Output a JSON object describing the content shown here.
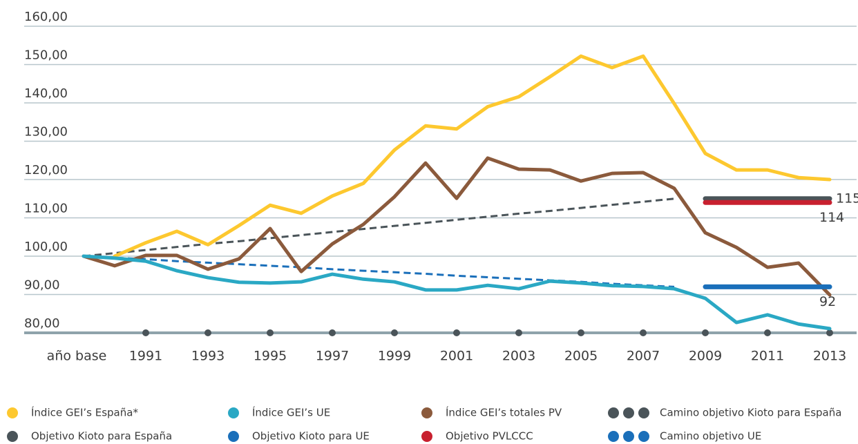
{
  "chart_data": {
    "type": "line",
    "categories": [
      "año base",
      null,
      "1991",
      null,
      "1993",
      null,
      "1995",
      null,
      "1997",
      null,
      "1999",
      null,
      "2001",
      null,
      "2003",
      null,
      "2005",
      null,
      "2007",
      null,
      "2009",
      null,
      "2011",
      null,
      "2013"
    ],
    "ylim": [
      80,
      160
    ],
    "yticks": [
      {
        "value": 80,
        "label": "80,00"
      },
      {
        "value": 90,
        "label": "90,00"
      },
      {
        "value": 100,
        "label": "100,00"
      },
      {
        "value": 110,
        "label": "110,00"
      },
      {
        "value": 120,
        "label": "120,00"
      },
      {
        "value": 130,
        "label": "130,00"
      },
      {
        "value": 140,
        "label": "140,00"
      },
      {
        "value": 150,
        "label": "150,00"
      },
      {
        "value": 160,
        "label": "160,00"
      }
    ],
    "grid": true,
    "series": [
      {
        "name": "Índice GEI’s España*",
        "color": "#fdc82f",
        "values": [
          null,
          100,
          103.5,
          106.5,
          103,
          108,
          113.3,
          111.2,
          115.7,
          119,
          127.7,
          134,
          133.2,
          139,
          141.6,
          146.8,
          152.2,
          149.2,
          152.2,
          139.8,
          126.8,
          122.5,
          122.5,
          120.5,
          120
        ]
      },
      {
        "name": "Índice GEI’s UE",
        "color": "#2aa8c4",
        "values": [
          100,
          99.5,
          98.7,
          96.2,
          94.4,
          93.2,
          93,
          93.3,
          95.3,
          94,
          93.3,
          91.2,
          91.2,
          92.4,
          91.5,
          93.5,
          93,
          92.3,
          92.1,
          91.5,
          89,
          82.7,
          84.7,
          82.3,
          81.1
        ]
      },
      {
        "name": "Índice GEI’s totales PV",
        "color": "#8b5a3c",
        "values": [
          100,
          97.5,
          100.2,
          100.2,
          96.6,
          99.3,
          107.2,
          96,
          103.2,
          108.3,
          115.5,
          124.3,
          115.1,
          125.6,
          122.7,
          122.5,
          119.6,
          121.6,
          121.8,
          117.7,
          106.1,
          102.3,
          97.1,
          98.2,
          89.9
        ]
      },
      {
        "name": "Camino objetivo Kioto para España",
        "color": "#4a5459",
        "dashed": true,
        "values": [
          100,
          100.8,
          101.6,
          102.4,
          103.2,
          103.9,
          104.7,
          105.5,
          106.3,
          107.1,
          107.9,
          108.7,
          109.5,
          110.3,
          111.1,
          111.8,
          112.6,
          113.4,
          114.2,
          115,
          null,
          null,
          null,
          null,
          null
        ]
      },
      {
        "name": "Objetivo Kioto para España",
        "color": "#4a5459",
        "data_label": true,
        "values": [
          null,
          null,
          null,
          null,
          null,
          null,
          null,
          null,
          null,
          null,
          null,
          null,
          null,
          null,
          null,
          null,
          null,
          null,
          null,
          null,
          115,
          115,
          115,
          115,
          115
        ]
      },
      {
        "name": "Objetivo Kioto para UE",
        "color": "#1a6fba",
        "data_label": true,
        "values": [
          null,
          null,
          null,
          null,
          null,
          null,
          null,
          null,
          null,
          null,
          null,
          null,
          null,
          null,
          null,
          null,
          null,
          null,
          null,
          null,
          92,
          92,
          92,
          92,
          92
        ]
      },
      {
        "name": "Objetivo PVLCCC",
        "color": "#c8202f",
        "data_label": true,
        "values": [
          null,
          null,
          null,
          null,
          null,
          null,
          null,
          null,
          null,
          null,
          null,
          null,
          null,
          null,
          null,
          null,
          null,
          null,
          null,
          null,
          114,
          114,
          114,
          114,
          114
        ]
      },
      {
        "name": "Camino objetivo UE",
        "color": "#1a6fba",
        "dashed": true,
        "values": [
          100,
          99.6,
          99.2,
          98.7,
          98.3,
          97.9,
          97.5,
          97.1,
          96.6,
          96.2,
          95.8,
          95.4,
          94.9,
          94.5,
          94.1,
          93.7,
          93.3,
          92.8,
          92.4,
          92,
          null,
          null,
          null,
          null,
          null
        ]
      }
    ]
  }
}
